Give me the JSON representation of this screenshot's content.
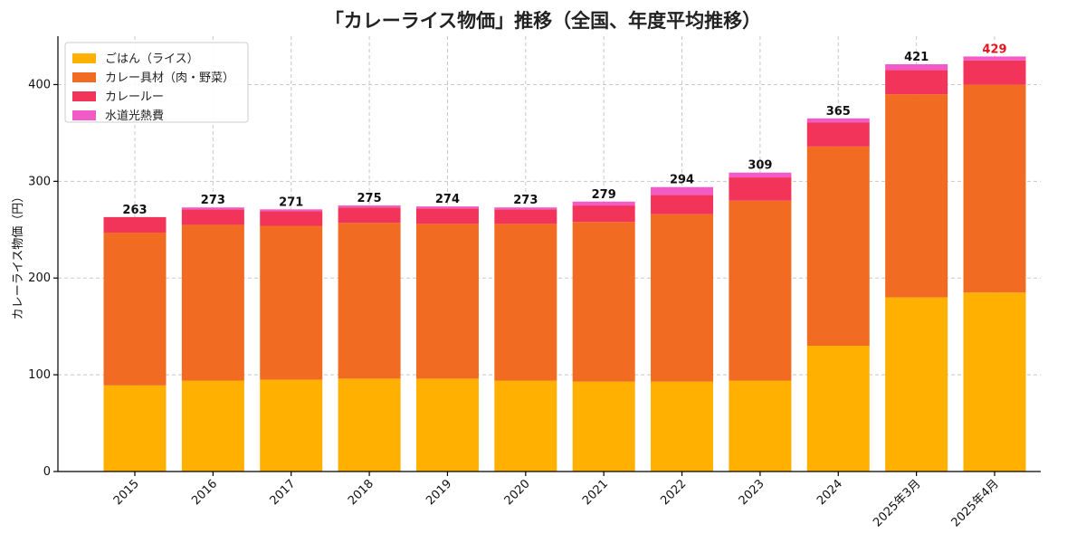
{
  "chart_data": {
    "type": "bar",
    "stacked": true,
    "title": "「カレーライス物価」推移（全国、年度平均推移）",
    "xlabel": "",
    "ylabel": "カレーライス物価（円）",
    "ylim": [
      0,
      450
    ],
    "yticks": [
      0,
      100,
      200,
      300,
      400
    ],
    "grid": true,
    "legend_position": "top-left",
    "categories": [
      "2015",
      "2016",
      "2017",
      "2018",
      "2019",
      "2020",
      "2021",
      "2022",
      "2023",
      "2024",
      "2025年3月",
      "2025年4月"
    ],
    "series": [
      {
        "name": "ごはん（ライス）",
        "color": "#FFB000",
        "values": [
          89,
          94,
          95,
          96,
          96,
          94,
          93,
          93,
          94,
          130,
          180,
          185
        ]
      },
      {
        "name": "カレー具材（肉・野菜）",
        "color": "#F26B23",
        "values": [
          158,
          161,
          159,
          161,
          160,
          162,
          165,
          173,
          186,
          206,
          210,
          215
        ]
      },
      {
        "name": "カレールー",
        "color": "#F2345A",
        "values": [
          16,
          16,
          15,
          16,
          16,
          15,
          17,
          20,
          24,
          25,
          25,
          25
        ]
      },
      {
        "name": "水道光熱費",
        "color": "#F25AC8",
        "values": [
          0,
          2,
          2,
          2,
          2,
          2,
          4,
          8,
          5,
          4,
          6,
          4
        ]
      }
    ],
    "totals": [
      "263",
      "273",
      "271",
      "275",
      "274",
      "273",
      "279",
      "294",
      "309",
      "365",
      "421",
      "429"
    ],
    "total_colors": [
      "#111111",
      "#111111",
      "#111111",
      "#111111",
      "#111111",
      "#111111",
      "#111111",
      "#111111",
      "#111111",
      "#111111",
      "#111111",
      "#E8141E"
    ]
  }
}
